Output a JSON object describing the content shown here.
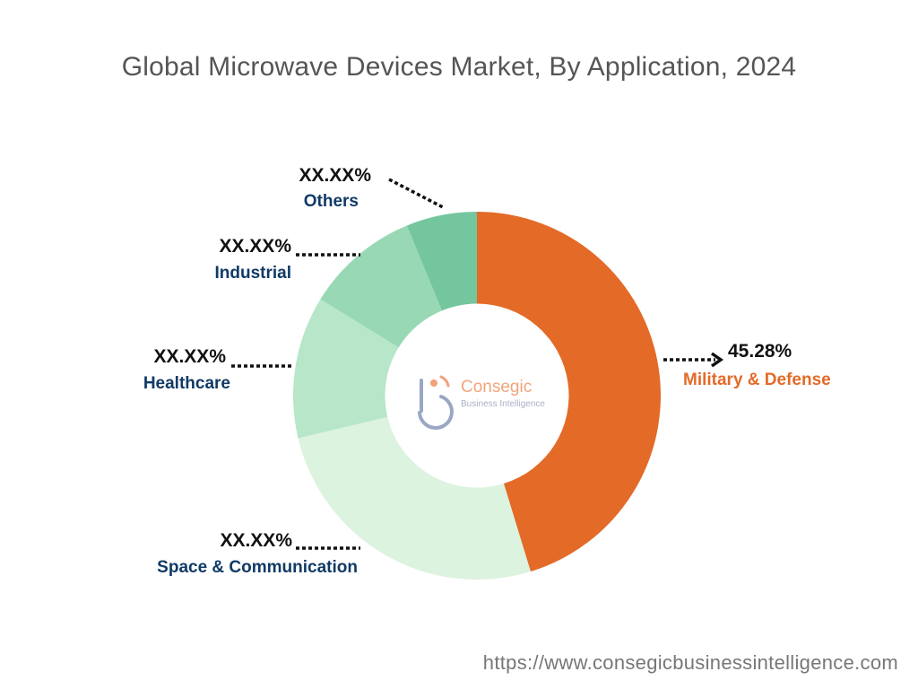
{
  "chart_data": {
    "type": "pie",
    "title": "Global Microwave Devices Market, By Application, 2024",
    "categories": [
      "Military & Defense",
      "Space & Communication",
      "Healthcare",
      "Industrial",
      "Others"
    ],
    "values": [
      45.28,
      26.0,
      12.5,
      10.0,
      6.22
    ],
    "value_labels": [
      "45.28%",
      "XX.XX%",
      "XX.XX%",
      "XX.XX%",
      "XX.XX%"
    ],
    "colors": [
      "#e36a27",
      "#dcf3df",
      "#b7e6c9",
      "#98d8b4",
      "#74c69e"
    ],
    "label_colors": [
      "#e36a27",
      "#103a66",
      "#103a66",
      "#103a66",
      "#103a66"
    ],
    "hole_ratio": 0.5
  },
  "logo": {
    "name": "Consegic",
    "tagline": "Business Intelligence"
  },
  "footer": {
    "url": "https://www.consegicbusinessintelligence.com"
  }
}
